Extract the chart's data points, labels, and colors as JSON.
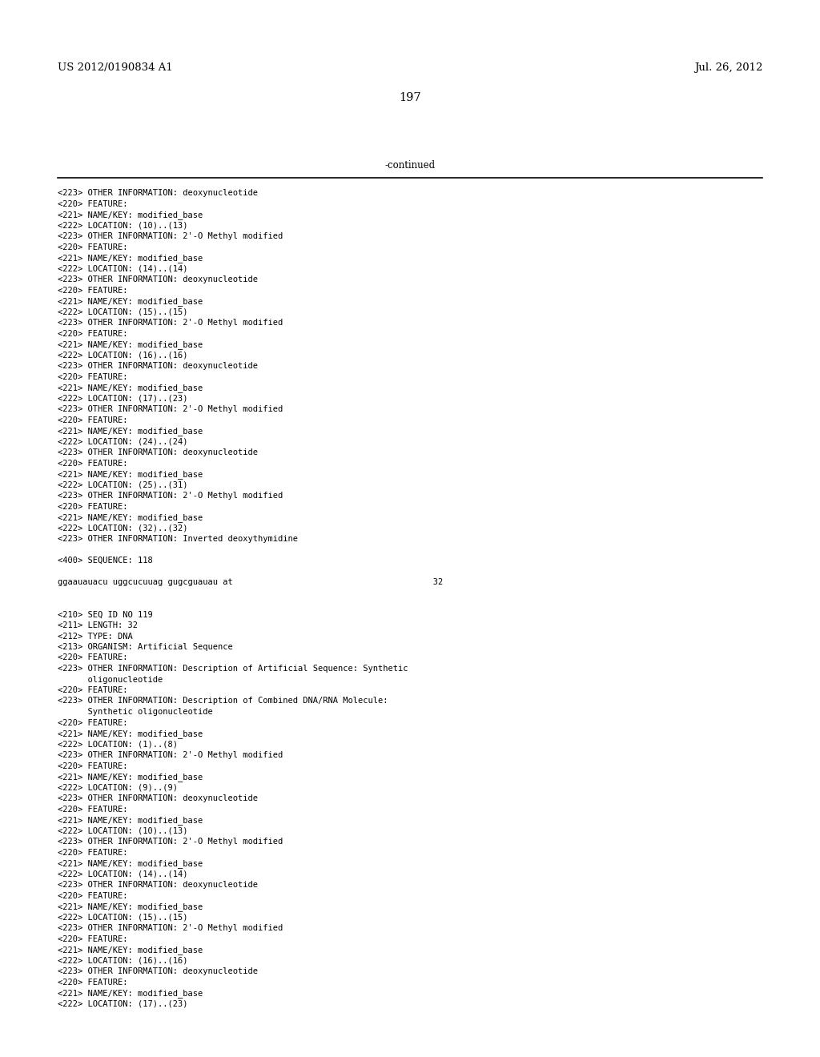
{
  "header_left": "US 2012/0190834 A1",
  "header_right": "Jul. 26, 2012",
  "page_number": "197",
  "continued_label": "-continued",
  "background_color": "#ffffff",
  "text_color": "#000000",
  "font_size_header": 9.5,
  "font_size_body": 7.5,
  "font_size_page": 10.5,
  "font_size_continued": 8.5,
  "mono_lines": [
    "<223> OTHER INFORMATION: deoxynucleotide",
    "<220> FEATURE:",
    "<221> NAME/KEY: modified_base",
    "<222> LOCATION: (10)..(13)",
    "<223> OTHER INFORMATION: 2'-O Methyl modified",
    "<220> FEATURE:",
    "<221> NAME/KEY: modified_base",
    "<222> LOCATION: (14)..(14)",
    "<223> OTHER INFORMATION: deoxynucleotide",
    "<220> FEATURE:",
    "<221> NAME/KEY: modified_base",
    "<222> LOCATION: (15)..(15)",
    "<223> OTHER INFORMATION: 2'-O Methyl modified",
    "<220> FEATURE:",
    "<221> NAME/KEY: modified_base",
    "<222> LOCATION: (16)..(16)",
    "<223> OTHER INFORMATION: deoxynucleotide",
    "<220> FEATURE:",
    "<221> NAME/KEY: modified_base",
    "<222> LOCATION: (17)..(23)",
    "<223> OTHER INFORMATION: 2'-O Methyl modified",
    "<220> FEATURE:",
    "<221> NAME/KEY: modified_base",
    "<222> LOCATION: (24)..(24)",
    "<223> OTHER INFORMATION: deoxynucleotide",
    "<220> FEATURE:",
    "<221> NAME/KEY: modified_base",
    "<222> LOCATION: (25)..(31)",
    "<223> OTHER INFORMATION: 2'-O Methyl modified",
    "<220> FEATURE:",
    "<221> NAME/KEY: modified_base",
    "<222> LOCATION: (32)..(32)",
    "<223> OTHER INFORMATION: Inverted deoxythymidine",
    "",
    "<400> SEQUENCE: 118",
    "",
    "ggaauauacu uggcucuuag gugcguauau at                                        32",
    "",
    "",
    "<210> SEQ ID NO 119",
    "<211> LENGTH: 32",
    "<212> TYPE: DNA",
    "<213> ORGANISM: Artificial Sequence",
    "<220> FEATURE:",
    "<223> OTHER INFORMATION: Description of Artificial Sequence: Synthetic",
    "      oligonucleotide",
    "<220> FEATURE:",
    "<223> OTHER INFORMATION: Description of Combined DNA/RNA Molecule:",
    "      Synthetic oligonucleotide",
    "<220> FEATURE:",
    "<221> NAME/KEY: modified_base",
    "<222> LOCATION: (1)..(8)",
    "<223> OTHER INFORMATION: 2'-O Methyl modified",
    "<220> FEATURE:",
    "<221> NAME/KEY: modified_base",
    "<222> LOCATION: (9)..(9)",
    "<223> OTHER INFORMATION: deoxynucleotide",
    "<220> FEATURE:",
    "<221> NAME/KEY: modified_base",
    "<222> LOCATION: (10)..(13)",
    "<223> OTHER INFORMATION: 2'-O Methyl modified",
    "<220> FEATURE:",
    "<221> NAME/KEY: modified_base",
    "<222> LOCATION: (14)..(14)",
    "<223> OTHER INFORMATION: deoxynucleotide",
    "<220> FEATURE:",
    "<221> NAME/KEY: modified_base",
    "<222> LOCATION: (15)..(15)",
    "<223> OTHER INFORMATION: 2'-O Methyl modified",
    "<220> FEATURE:",
    "<221> NAME/KEY: modified_base",
    "<222> LOCATION: (16)..(16)",
    "<223> OTHER INFORMATION: deoxynucleotide",
    "<220> FEATURE:",
    "<221> NAME/KEY: modified_base",
    "<222> LOCATION: (17)..(23)"
  ]
}
